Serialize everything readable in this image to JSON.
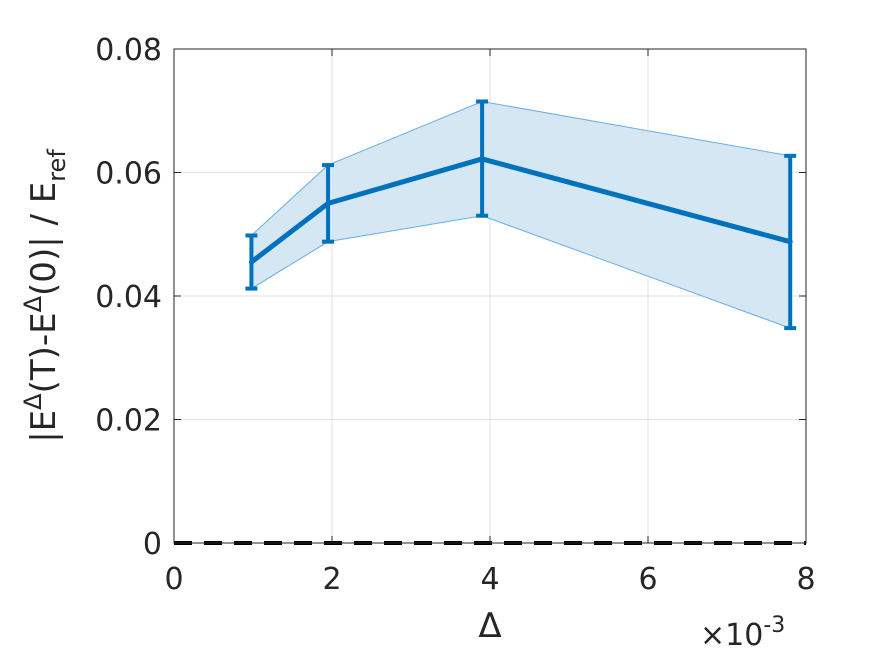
{
  "chart_data": {
    "type": "line",
    "xlabel": "Δ",
    "ylabel": {
      "pre": "|E",
      "sup1": "Δ",
      "mid": "(T)-E",
      "sup2": "Δ",
      "post": "(0)| / E",
      "sub": "ref"
    },
    "x_exponent": {
      "base": "×10",
      "exp": "-3"
    },
    "xlim": [
      0,
      8
    ],
    "ylim": [
      0,
      0.08
    ],
    "xticks": [
      0,
      2,
      4,
      6,
      8
    ],
    "xtick_labels": [
      "0",
      "2",
      "4",
      "6",
      "8"
    ],
    "yticks": [
      0,
      0.02,
      0.04,
      0.06,
      0.08
    ],
    "ytick_labels": [
      "0",
      "0.02",
      "0.04",
      "0.06",
      "0.08"
    ],
    "grid": true,
    "series": [
      {
        "x": [
          0.98,
          1.95,
          3.9,
          7.8
        ],
        "y": [
          0.0455,
          0.055,
          0.0622,
          0.0488
        ],
        "lower": [
          0.0412,
          0.0488,
          0.053,
          0.0348
        ],
        "upper": [
          0.0498,
          0.0612,
          0.0715,
          0.0627
        ],
        "color": "#0072bd",
        "band_color": "#d6e7f4"
      }
    ],
    "reference_line": {
      "y": 0,
      "style": "dashed",
      "color": "#000000"
    }
  }
}
